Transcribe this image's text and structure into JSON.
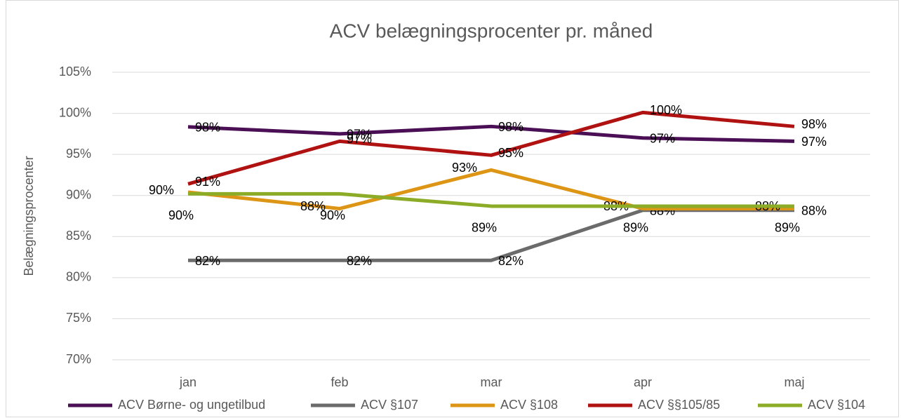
{
  "chart_data": {
    "type": "line",
    "title": "ACV belægningsprocenter pr. måned",
    "y_label": "Belægningsprocenter",
    "categories": [
      "jan",
      "feb",
      "mar",
      "apr",
      "maj"
    ],
    "ylim": [
      70,
      105
    ],
    "yticks": [
      {
        "value": 70,
        "label": "70%"
      },
      {
        "value": 75,
        "label": "75%"
      },
      {
        "value": 80,
        "label": "80%"
      },
      {
        "value": 85,
        "label": "85%"
      },
      {
        "value": 90,
        "label": "90%"
      },
      {
        "value": 95,
        "label": "95%"
      },
      {
        "value": 100,
        "label": "100%"
      },
      {
        "value": 105,
        "label": "105%"
      }
    ],
    "grid": true,
    "legend": "bottom",
    "series": [
      {
        "name": "ACV Børne- og ungetilbud",
        "color": "#4b0f55",
        "values": [
          98.35,
          97.5,
          98.4,
          97.0,
          96.6
        ],
        "value_labels": [
          "98%",
          "97%",
          "98%",
          "97%",
          "97%"
        ]
      },
      {
        "name": "ACV §107",
        "color": "#6b6b6b",
        "values": [
          82.1,
          82.1,
          82.1,
          88.2,
          88.2
        ],
        "value_labels": [
          "82%",
          "82%",
          "82%",
          "88%",
          "88%"
        ]
      },
      {
        "name": "ACV §108",
        "color": "#dd9515",
        "values": [
          90.4,
          88.4,
          93.1,
          88.4,
          88.4
        ],
        "value_labels": [
          "90%",
          "88%",
          "93%",
          "88%",
          "88%"
        ]
      },
      {
        "name": "ACV §§105/85",
        "color": "#b01212",
        "values": [
          91.4,
          96.6,
          94.9,
          100.1,
          98.4
        ],
        "value_labels": [
          "91%",
          "97%",
          "95%",
          "100%",
          "98%"
        ]
      },
      {
        "name": "ACV §104",
        "color": "#8cac28",
        "values": [
          90.2,
          90.2,
          88.7,
          88.7,
          88.7
        ],
        "value_labels": [
          "90%",
          "90%",
          "89%",
          "89%",
          "89%"
        ]
      }
    ]
  }
}
